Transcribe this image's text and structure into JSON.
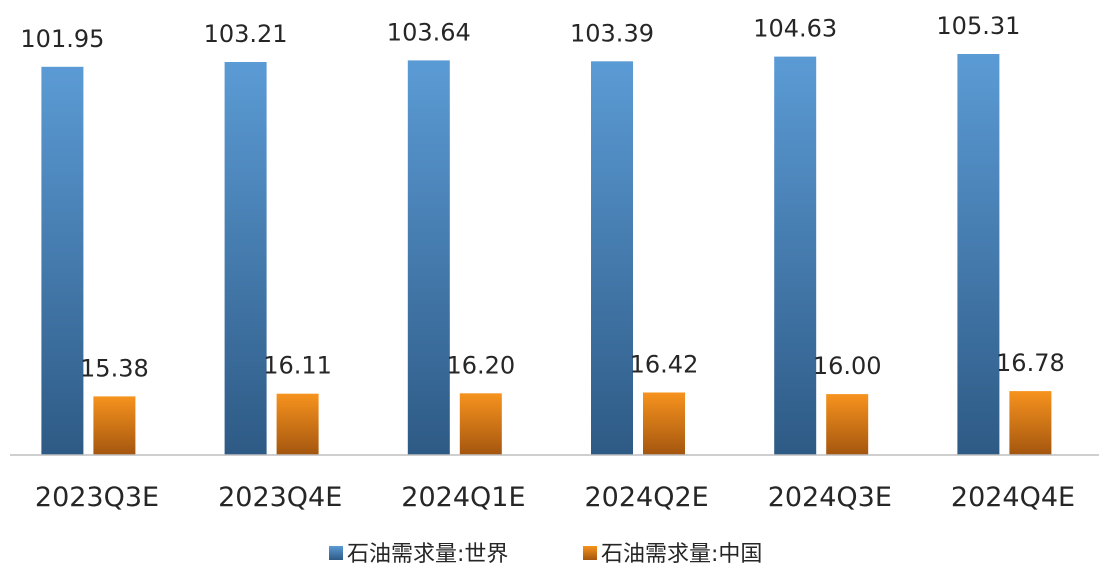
{
  "chart_data": {
    "type": "bar",
    "categories": [
      "2023Q3E",
      "2023Q4E",
      "2024Q1E",
      "2024Q2E",
      "2024Q3E",
      "2024Q4E"
    ],
    "series": [
      {
        "name": "石油需求量:世界",
        "values": [
          101.95,
          103.21,
          103.64,
          103.39,
          104.63,
          105.31
        ],
        "labels": [
          "101.95",
          "103.21",
          "103.64",
          "103.39",
          "104.63",
          "105.31"
        ],
        "color_top": "#5B9BD5",
        "color_bottom": "#2E5A85"
      },
      {
        "name": "石油需求量:中国",
        "values": [
          15.38,
          16.11,
          16.2,
          16.42,
          16.0,
          16.78
        ],
        "labels": [
          "15.38",
          "16.11",
          "16.20",
          "16.42",
          "16.00",
          "16.78"
        ],
        "color_top": "#F7931E",
        "color_bottom": "#A4560F"
      }
    ],
    "ylim": [
      0,
      105.31
    ],
    "grid": false,
    "legend_position": "bottom",
    "axis_color": "#BFBFBF"
  }
}
